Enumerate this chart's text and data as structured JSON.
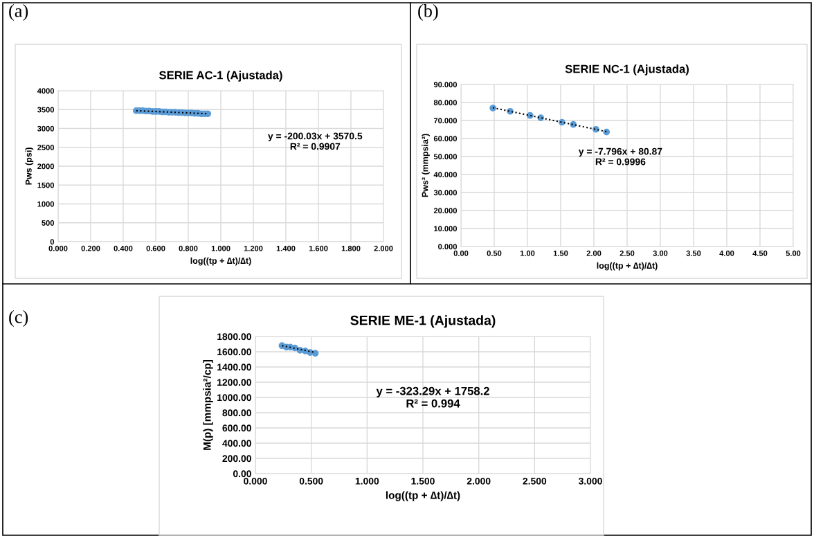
{
  "chart_data": [
    {
      "type": "scatter",
      "title": "SERIE AC-1 (Ajustada)",
      "xlabel": "log((tp + ∆t)/∆t)",
      "ylabel": "Pws (psi)",
      "annotations": [
        "(a)",
        "y = -200.03x + 3570.5\nR² = 0.9907"
      ],
      "grid": true,
      "xlim": [
        0,
        2
      ],
      "xticks": [
        {
          "value": 0,
          "label": "0.000"
        },
        {
          "value": 0.2,
          "label": "0.200"
        },
        {
          "value": 0.4,
          "label": "0.400"
        },
        {
          "value": 0.6,
          "label": "0.600"
        },
        {
          "value": 0.8,
          "label": "0.800"
        },
        {
          "value": 1,
          "label": "1.000"
        },
        {
          "value": 1.2,
          "label": "1.200"
        },
        {
          "value": 1.4,
          "label": "1.400"
        },
        {
          "value": 1.6,
          "label": "1.600"
        },
        {
          "value": 1.8,
          "label": "1.800"
        },
        {
          "value": 2,
          "label": "2.000"
        }
      ],
      "ylim": [
        0,
        4000
      ],
      "yticks": [
        0,
        500,
        1000,
        1500,
        2000,
        2500,
        3000,
        3500,
        4000
      ],
      "series": [
        {
          "color": "#5b9bd5",
          "marker": "circle",
          "x": [
            0.48,
            0.5,
            0.52,
            0.54,
            0.56,
            0.58,
            0.6,
            0.62,
            0.64,
            0.66,
            0.68,
            0.7,
            0.72,
            0.74,
            0.76,
            0.78,
            0.8,
            0.82,
            0.84,
            0.86,
            0.88,
            0.9,
            0.92
          ],
          "values": [
            3470,
            3470,
            3470,
            3460,
            3460,
            3450,
            3450,
            3450,
            3440,
            3440,
            3430,
            3430,
            3430,
            3420,
            3420,
            3410,
            3410,
            3410,
            3400,
            3400,
            3390,
            3390,
            3390
          ]
        },
        {
          "type": "line",
          "color": "#000000",
          "marker": "none",
          "line_style": "dotted",
          "x": [
            0.48,
            0.92
          ],
          "values": [
            3470,
            3390
          ]
        }
      ]
    },
    {
      "type": "scatter",
      "title": "SERIE NC-1 (Ajustada)",
      "xlabel": "log((tp + ∆t)/∆t)",
      "ylabel": "Pws² (mmpsia²)",
      "annotations": [
        "(b)",
        "y = -7.796x + 80.87\nR² = 0.9996"
      ],
      "grid": true,
      "xlim": [
        0,
        5
      ],
      "xticks": [
        {
          "value": 0,
          "label": "0.00"
        },
        {
          "value": 0.5,
          "label": "0.50"
        },
        {
          "value": 1,
          "label": "1.00"
        },
        {
          "value": 1.5,
          "label": "1.50"
        },
        {
          "value": 2,
          "label": "2.00"
        },
        {
          "value": 2.5,
          "label": "2.50"
        },
        {
          "value": 3,
          "label": "3.00"
        },
        {
          "value": 3.5,
          "label": "3.50"
        },
        {
          "value": 4,
          "label": "4.00"
        },
        {
          "value": 4.5,
          "label": "4.50"
        },
        {
          "value": 5,
          "label": "5.00"
        }
      ],
      "ylim": [
        0,
        90
      ],
      "yticks": [
        {
          "value": 0,
          "label": "0.000"
        },
        {
          "value": 10,
          "label": "10.000"
        },
        {
          "value": 20,
          "label": "20.000"
        },
        {
          "value": 30,
          "label": "30.000"
        },
        {
          "value": 40,
          "label": "40.000"
        },
        {
          "value": 50,
          "label": "50.000"
        },
        {
          "value": 60,
          "label": "60.000"
        },
        {
          "value": 70,
          "label": "70.000"
        },
        {
          "value": 80,
          "label": "80.000"
        },
        {
          "value": 90,
          "label": "90.000"
        }
      ],
      "series": [
        {
          "color": "#5b9bd5",
          "marker": "circle",
          "x": [
            0.48,
            0.74,
            1.04,
            1.2,
            1.52,
            1.69,
            2.03,
            2.19
          ],
          "values": [
            76.9,
            75.1,
            72.8,
            71.5,
            69.0,
            67.8,
            65.1,
            63.6
          ]
        },
        {
          "type": "line",
          "color": "#000000",
          "marker": "none",
          "line_style": "dotted",
          "x": [
            0.48,
            2.19
          ],
          "values": [
            77.1,
            63.8
          ]
        }
      ]
    },
    {
      "type": "scatter",
      "title": "SERIE ME-1 (Ajustada)",
      "xlabel": "log((tp + ∆t)/∆t)",
      "ylabel": "M(p) [mmpsia²/cp]",
      "annotations": [
        "(c)",
        "y = -323.29x + 1758.2\nR² = 0.994"
      ],
      "grid": true,
      "xlim": [
        0,
        3
      ],
      "xticks": [
        {
          "value": 0,
          "label": "0.000"
        },
        {
          "value": 0.5,
          "label": "0.500"
        },
        {
          "value": 1,
          "label": "1.000"
        },
        {
          "value": 1.5,
          "label": "1.500"
        },
        {
          "value": 2,
          "label": "2.000"
        },
        {
          "value": 2.5,
          "label": "2.500"
        },
        {
          "value": 3,
          "label": "3.000"
        }
      ],
      "ylim": [
        0,
        1800
      ],
      "yticks": [
        {
          "value": 0,
          "label": "0.00"
        },
        {
          "value": 200,
          "label": "200.00"
        },
        {
          "value": 400,
          "label": "400.00"
        },
        {
          "value": 600,
          "label": "600.00"
        },
        {
          "value": 800,
          "label": "800.00"
        },
        {
          "value": 1000,
          "label": "1000.00"
        },
        {
          "value": 1200,
          "label": "1200.00"
        },
        {
          "value": 1400,
          "label": "1400.00"
        },
        {
          "value": 1600,
          "label": "1600.00"
        },
        {
          "value": 1800,
          "label": "1800.00"
        }
      ],
      "series": [
        {
          "color": "#5b9bd5",
          "marker": "circle",
          "x": [
            0.238,
            0.278,
            0.313,
            0.353,
            0.399,
            0.446,
            0.49,
            0.536
          ],
          "values": [
            1680,
            1660,
            1660,
            1650,
            1620,
            1610,
            1590,
            1580
          ]
        },
        {
          "type": "line",
          "color": "#000000",
          "marker": "none",
          "line_style": "dotted",
          "x": [
            0.238,
            0.536
          ],
          "values": [
            1680,
            1590
          ]
        }
      ]
    }
  ]
}
